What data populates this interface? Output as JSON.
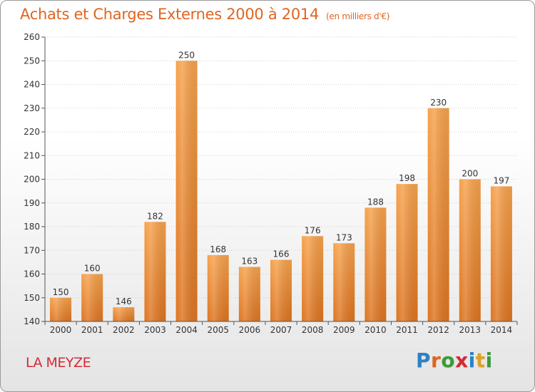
{
  "header": {
    "title": "Achats et Charges Externes 2000 à 2014",
    "subtitle": "(en milliers d'€)"
  },
  "footer": {
    "place": "LA MEYZE",
    "logo_letters": [
      "P",
      "r",
      "o",
      "x",
      "i",
      "t",
      "i"
    ],
    "logo_colors": [
      "#2a82c8",
      "#e0651f",
      "#3a9b3a",
      "#d42a35",
      "#2a82c8",
      "#e0a21f",
      "#3a9b3a"
    ]
  },
  "chart_data": {
    "type": "bar",
    "title": "Achats et Charges Externes 2000 à 2014",
    "subtitle": "(en milliers d'€)",
    "categories": [
      "2000",
      "2001",
      "2002",
      "2003",
      "2004",
      "2005",
      "2006",
      "2007",
      "2008",
      "2009",
      "2010",
      "2011",
      "2012",
      "2013",
      "2014"
    ],
    "values": [
      150,
      160,
      146,
      182,
      250,
      168,
      163,
      166,
      176,
      173,
      188,
      198,
      230,
      200,
      197
    ],
    "ylim": [
      140,
      260
    ],
    "yticks": [
      140,
      150,
      160,
      170,
      180,
      190,
      200,
      210,
      220,
      230,
      240,
      250,
      260
    ],
    "grid": true,
    "bar_color": "#f0903a"
  }
}
